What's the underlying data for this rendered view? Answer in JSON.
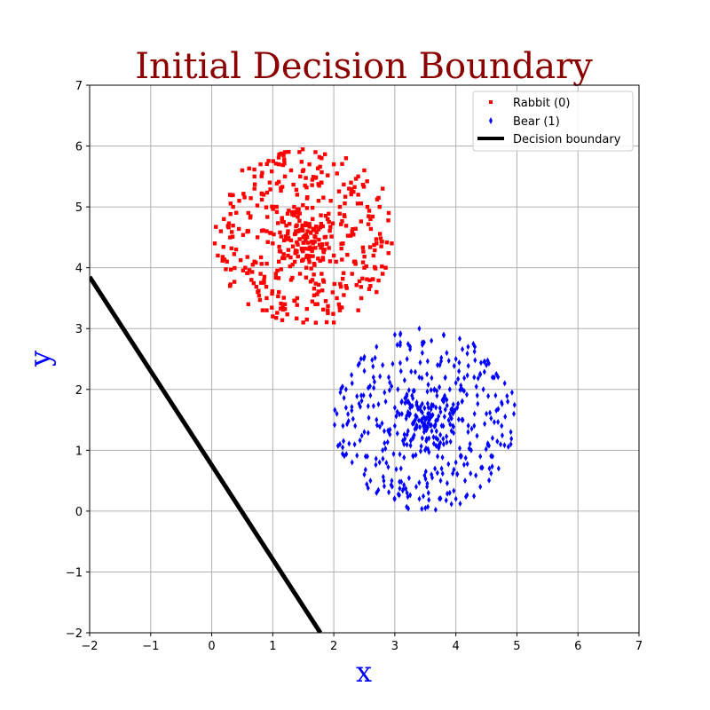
{
  "chart_data": {
    "type": "scatter",
    "title": "Initial Decision Boundary",
    "xlabel": "x",
    "ylabel": "y",
    "xlim": [
      -2,
      7
    ],
    "ylim": [
      -2,
      7
    ],
    "xticks": [
      -2,
      -1,
      0,
      1,
      2,
      3,
      4,
      5,
      6,
      7
    ],
    "yticks": [
      -2,
      -1,
      0,
      1,
      2,
      3,
      4,
      5,
      6,
      7
    ],
    "grid": true,
    "legend_position": "top-right",
    "series": [
      {
        "name": "Rabbit (0)",
        "marker": "square",
        "color": "#ff0000",
        "center": [
          1.5,
          4.5
        ],
        "radius": 1.45,
        "points": [
          [
            1.5,
            4.5
          ],
          [
            1.45,
            4.62
          ],
          [
            1.58,
            4.41
          ],
          [
            1.36,
            4.55
          ],
          [
            1.62,
            4.58
          ],
          [
            1.41,
            4.38
          ],
          [
            1.55,
            4.7
          ],
          [
            1.3,
            4.45
          ],
          [
            1.7,
            4.5
          ],
          [
            1.48,
            4.3
          ],
          [
            1.6,
            4.72
          ],
          [
            1.25,
            4.6
          ],
          [
            1.52,
            4.52
          ],
          [
            1.66,
            4.4
          ],
          [
            1.38,
            4.68
          ],
          [
            1.44,
            4.47
          ],
          [
            1.75,
            4.63
          ],
          [
            1.33,
            4.35
          ],
          [
            1.57,
            4.6
          ],
          [
            1.5,
            4.41
          ],
          [
            0.2,
            4.8
          ],
          [
            0.1,
            4.2
          ],
          [
            0.3,
            5.2
          ],
          [
            0.5,
            5.6
          ],
          [
            0.8,
            5.7
          ],
          [
            1.2,
            5.9
          ],
          [
            1.7,
            5.9
          ],
          [
            2.2,
            5.8
          ],
          [
            2.5,
            5.6
          ],
          [
            2.8,
            5.3
          ],
          [
            2.9,
            4.9
          ],
          [
            2.95,
            4.4
          ],
          [
            2.85,
            4.0
          ],
          [
            2.7,
            3.6
          ],
          [
            2.4,
            3.3
          ],
          [
            2.0,
            3.1
          ],
          [
            1.5,
            3.1
          ],
          [
            1.0,
            3.2
          ],
          [
            0.6,
            3.4
          ],
          [
            0.3,
            3.7
          ],
          [
            0.05,
            4.4
          ],
          [
            0.4,
            4.3
          ],
          [
            0.6,
            4.9
          ],
          [
            0.7,
            5.3
          ],
          [
            0.9,
            4.6
          ],
          [
            1.0,
            5.0
          ],
          [
            1.1,
            4.1
          ],
          [
            1.2,
            5.5
          ],
          [
            1.3,
            3.8
          ],
          [
            1.4,
            5.2
          ],
          [
            1.8,
            5.4
          ],
          [
            1.9,
            4.8
          ],
          [
            2.0,
            4.2
          ],
          [
            2.1,
            5.0
          ],
          [
            2.2,
            3.7
          ],
          [
            2.3,
            4.6
          ],
          [
            2.4,
            5.2
          ],
          [
            2.5,
            4.0
          ],
          [
            2.6,
            4.8
          ],
          [
            2.7,
            4.4
          ],
          [
            0.8,
            3.9
          ],
          [
            0.9,
            3.5
          ],
          [
            1.0,
            4.4
          ],
          [
            1.1,
            3.6
          ],
          [
            1.7,
            3.4
          ],
          [
            1.8,
            3.9
          ],
          [
            1.9,
            3.3
          ],
          [
            2.0,
            5.7
          ],
          [
            1.6,
            5.7
          ],
          [
            1.3,
            5.6
          ],
          [
            0.45,
            5.1
          ],
          [
            0.55,
            4.0
          ],
          [
            0.65,
            3.8
          ],
          [
            0.75,
            4.5
          ],
          [
            0.85,
            5.2
          ],
          [
            0.95,
            5.4
          ],
          [
            2.15,
            4.4
          ],
          [
            2.25,
            5.3
          ],
          [
            2.35,
            4.1
          ],
          [
            2.45,
            3.5
          ],
          [
            2.55,
            5.0
          ],
          [
            2.65,
            4.2
          ],
          [
            2.75,
            5.0
          ],
          [
            2.8,
            3.9
          ],
          [
            0.15,
            4.6
          ],
          [
            0.25,
            4.1
          ],
          [
            0.35,
            5.0
          ],
          [
            1.15,
            4.8
          ],
          [
            1.25,
            4.2
          ],
          [
            1.85,
            4.5
          ],
          [
            1.95,
            5.1
          ],
          [
            2.05,
            3.5
          ],
          [
            1.65,
            3.8
          ],
          [
            1.55,
            4.0
          ],
          [
            1.45,
            5.5
          ],
          [
            1.35,
            5.0
          ],
          [
            1.75,
            5.1
          ],
          [
            1.05,
            3.9
          ],
          [
            0.7,
            4.1
          ],
          [
            0.6,
            4.6
          ],
          [
            2.3,
            3.9
          ],
          [
            2.6,
            3.7
          ],
          [
            2.1,
            3.3
          ],
          [
            1.2,
            3.4
          ],
          [
            0.9,
            3.3
          ],
          [
            1.4,
            3.5
          ],
          [
            1.8,
            5.8
          ],
          [
            1.1,
            5.7
          ],
          [
            0.7,
            5.5
          ],
          [
            2.4,
            5.5
          ]
        ]
      },
      {
        "name": "Bear (1)",
        "marker": "diamond",
        "color": "#0000ff",
        "center": [
          3.5,
          1.5
        ],
        "radius": 1.5,
        "points": [
          [
            3.5,
            1.5
          ],
          [
            3.45,
            1.62
          ],
          [
            3.58,
            1.41
          ],
          [
            3.36,
            1.55
          ],
          [
            3.62,
            1.58
          ],
          [
            3.41,
            1.38
          ],
          [
            3.55,
            1.7
          ],
          [
            3.3,
            1.45
          ],
          [
            3.7,
            1.5
          ],
          [
            3.48,
            1.3
          ],
          [
            3.6,
            1.72
          ],
          [
            3.25,
            1.6
          ],
          [
            3.52,
            1.52
          ],
          [
            3.66,
            1.4
          ],
          [
            3.38,
            1.68
          ],
          [
            3.44,
            1.47
          ],
          [
            3.75,
            1.63
          ],
          [
            3.33,
            1.35
          ],
          [
            3.57,
            1.6
          ],
          [
            3.5,
            1.41
          ],
          [
            2.05,
            1.6
          ],
          [
            2.1,
            1.1
          ],
          [
            2.2,
            2.0
          ],
          [
            2.4,
            2.4
          ],
          [
            2.7,
            2.7
          ],
          [
            3.0,
            2.9
          ],
          [
            3.4,
            3.0
          ],
          [
            3.8,
            2.9
          ],
          [
            4.2,
            2.7
          ],
          [
            4.5,
            2.4
          ],
          [
            4.8,
            2.1
          ],
          [
            4.95,
            1.6
          ],
          [
            4.9,
            1.1
          ],
          [
            4.7,
            0.7
          ],
          [
            4.4,
            0.4
          ],
          [
            4.0,
            0.2
          ],
          [
            3.5,
            0.05
          ],
          [
            3.0,
            0.2
          ],
          [
            2.6,
            0.5
          ],
          [
            2.3,
            0.8
          ],
          [
            2.5,
            1.3
          ],
          [
            2.6,
            1.9
          ],
          [
            2.8,
            1.0
          ],
          [
            2.9,
            2.2
          ],
          [
            3.0,
            1.4
          ],
          [
            3.1,
            0.7
          ],
          [
            3.2,
            2.5
          ],
          [
            3.3,
            0.9
          ],
          [
            3.4,
            2.2
          ],
          [
            3.6,
            0.6
          ],
          [
            3.7,
            2.4
          ],
          [
            3.8,
            1.1
          ],
          [
            3.9,
            2.0
          ],
          [
            4.0,
            0.8
          ],
          [
            4.1,
            1.8
          ],
          [
            4.2,
            1.3
          ],
          [
            4.3,
            2.2
          ],
          [
            4.4,
            0.9
          ],
          [
            4.5,
            1.6
          ],
          [
            4.6,
            1.2
          ],
          [
            2.7,
            1.5
          ],
          [
            2.75,
            0.8
          ],
          [
            2.85,
            1.8
          ],
          [
            2.95,
            0.5
          ],
          [
            3.05,
            2.0
          ],
          [
            3.15,
            1.1
          ],
          [
            3.25,
            2.7
          ],
          [
            3.35,
            0.4
          ],
          [
            3.45,
            2.6
          ],
          [
            3.55,
            0.3
          ],
          [
            3.65,
            2.0
          ],
          [
            3.75,
            0.5
          ],
          [
            3.85,
            2.6
          ],
          [
            3.95,
            1.4
          ],
          [
            4.05,
            2.3
          ],
          [
            4.15,
            0.5
          ],
          [
            4.25,
            1.0
          ],
          [
            4.35,
            1.9
          ],
          [
            4.45,
            2.0
          ],
          [
            4.55,
            0.7
          ],
          [
            4.65,
            1.9
          ],
          [
            4.75,
            1.4
          ],
          [
            4.85,
            1.8
          ],
          [
            2.35,
            1.4
          ],
          [
            2.45,
            1.9
          ],
          [
            2.55,
            0.9
          ],
          [
            2.65,
            2.2
          ],
          [
            2.3,
            2.1
          ],
          [
            2.15,
            1.4
          ],
          [
            3.0,
            1.7
          ],
          [
            3.2,
            1.8
          ],
          [
            3.9,
            1.6
          ],
          [
            4.1,
            1.5
          ],
          [
            3.1,
            2.3
          ],
          [
            3.7,
            0.9
          ],
          [
            3.3,
            1.2
          ],
          [
            3.8,
            1.8
          ],
          [
            2.9,
            1.3
          ],
          [
            4.3,
            1.4
          ],
          [
            4.6,
            2.2
          ],
          [
            2.8,
            2.4
          ],
          [
            3.6,
            2.8
          ],
          [
            4.0,
            2.5
          ],
          [
            2.5,
            0.6
          ],
          [
            3.2,
            0.3
          ],
          [
            3.9,
            0.3
          ],
          [
            4.6,
            0.9
          ],
          [
            2.2,
            1.7
          ],
          [
            4.9,
            1.3
          ],
          [
            2.7,
            0.3
          ]
        ]
      },
      {
        "name": "Decision boundary",
        "marker": "line",
        "color": "#000000",
        "x": [
          -2,
          1.78
        ],
        "y": [
          3.85,
          -2
        ]
      }
    ]
  }
}
